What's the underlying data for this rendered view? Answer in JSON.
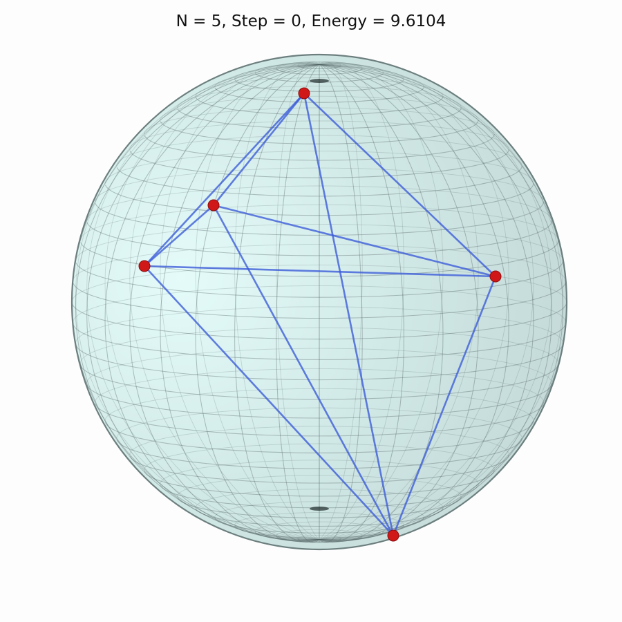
{
  "title": "N = 5, Step = 0, Energy = 9.6104",
  "colors": {
    "background": "#fdfdfd",
    "sphere_fill": "#cfe7e5",
    "sphere_highlight": "#e4fbf9",
    "grid_line": "#4d5e5d",
    "edge": "#3a5ad8",
    "point": "#d01818"
  },
  "points": [
    {
      "id": "p1"
    },
    {
      "id": "p2"
    },
    {
      "id": "p3"
    },
    {
      "id": "p4"
    },
    {
      "id": "p5"
    }
  ],
  "edges": [
    [
      "p1",
      "p2"
    ],
    [
      "p1",
      "p3"
    ],
    [
      "p1",
      "p4"
    ],
    [
      "p1",
      "p5"
    ],
    [
      "p2",
      "p3"
    ],
    [
      "p2",
      "p4"
    ],
    [
      "p2",
      "p5"
    ],
    [
      "p3",
      "p4"
    ],
    [
      "p3",
      "p5"
    ],
    [
      "p4",
      "p5"
    ]
  ]
}
